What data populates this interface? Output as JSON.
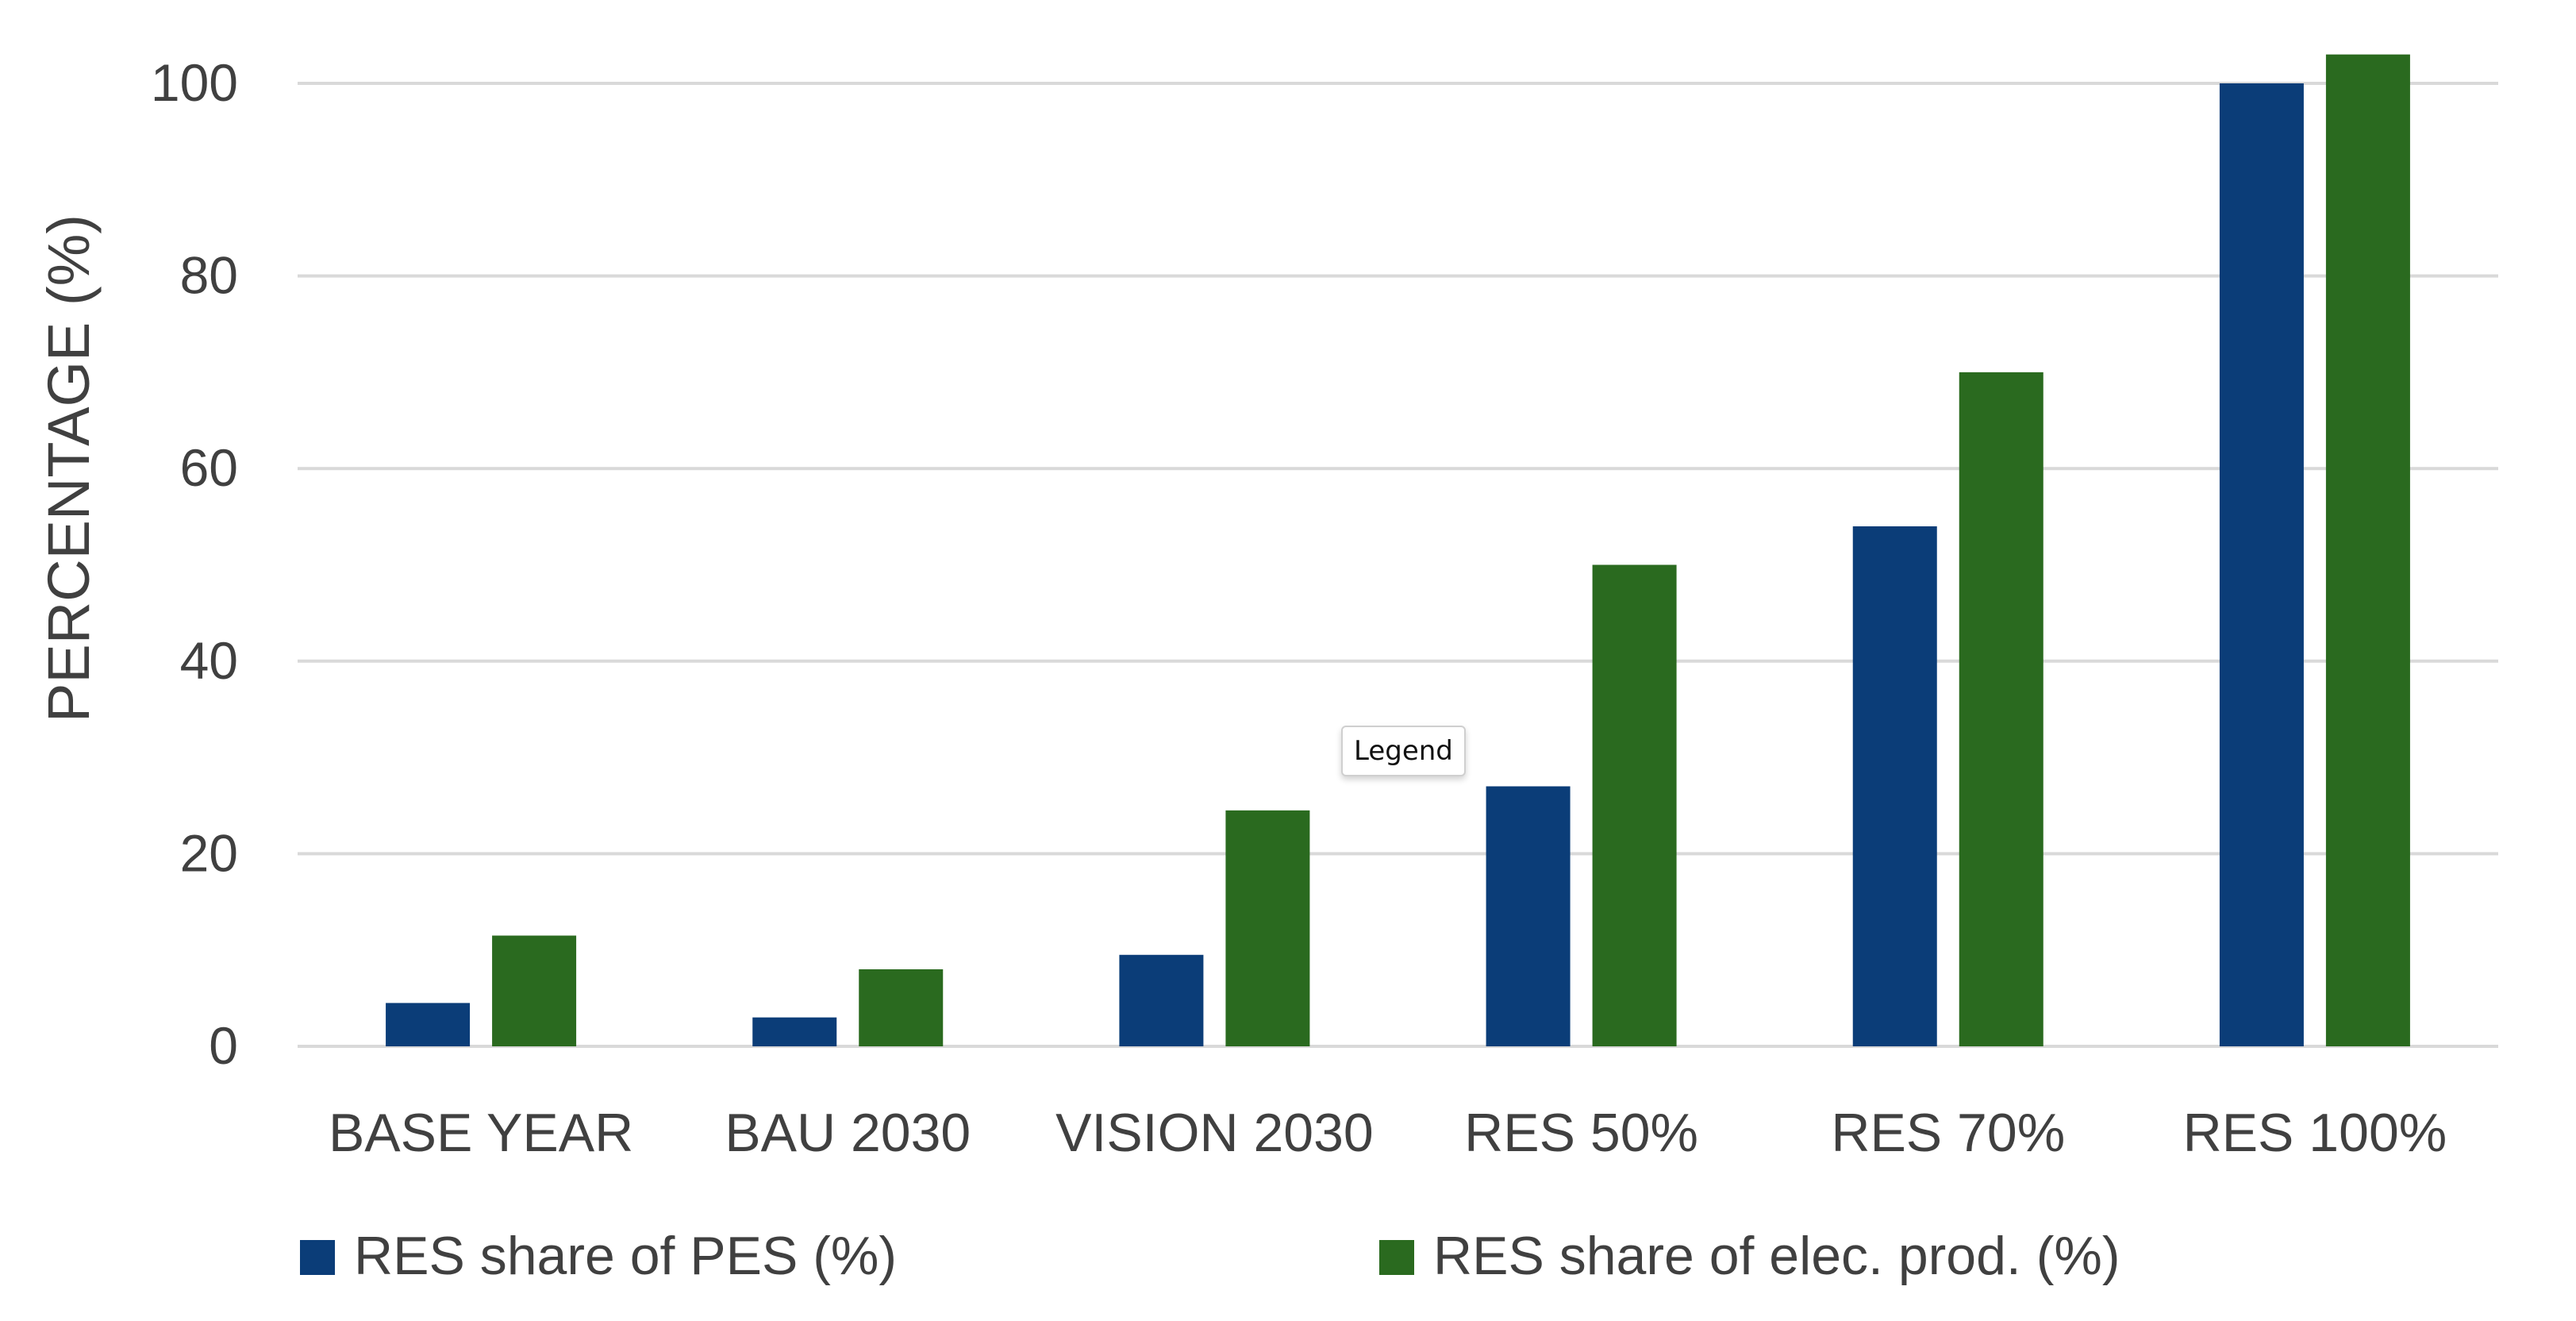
{
  "chart_data": {
    "type": "bar",
    "categories": [
      "BASE YEAR",
      "BAU 2030",
      "VISION 2030",
      "RES 50%",
      "RES 70%",
      "RES 100%"
    ],
    "series": [
      {
        "name": "RES share of PES (%)",
        "color": "#0b3d78",
        "values": [
          4.5,
          3,
          9.5,
          27,
          54,
          100
        ]
      },
      {
        "name": "RES share of elec. prod. (%)",
        "color": "#2a6a1f",
        "values": [
          11.5,
          8,
          24.5,
          50,
          70,
          103
        ]
      }
    ],
    "title": "",
    "xlabel": "",
    "ylabel": "PERCENTAGE (%)",
    "ylim": [
      0,
      100
    ],
    "yticks": [
      0,
      20,
      40,
      60,
      80,
      100
    ],
    "grid": true,
    "legend_position": "bottom"
  },
  "tooltip": {
    "label": "Legend"
  }
}
